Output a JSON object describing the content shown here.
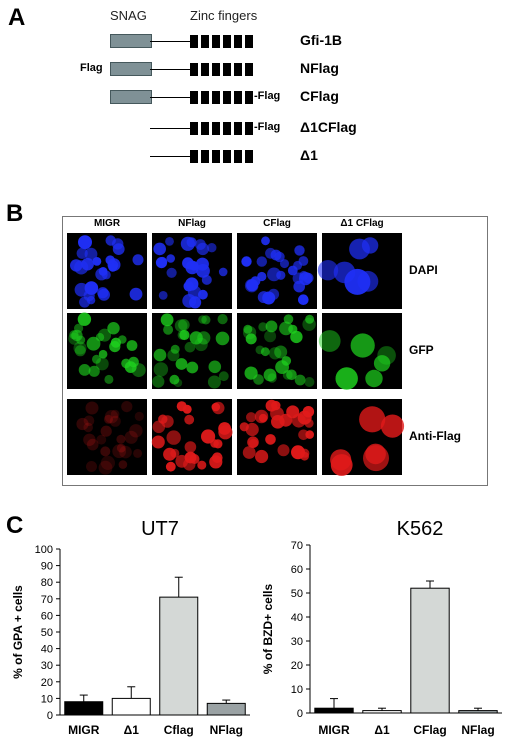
{
  "panel_a": {
    "letter": "A",
    "header_snag": "SNAG",
    "header_zinc": "Zinc fingers",
    "constructs": [
      {
        "label": "Gfi-1B",
        "has_snag": true,
        "left_flag": "",
        "right_flag": ""
      },
      {
        "label": "NFlag",
        "has_snag": true,
        "left_flag": "Flag",
        "right_flag": ""
      },
      {
        "label": "CFlag",
        "has_snag": true,
        "left_flag": "",
        "right_flag": "-Flag"
      },
      {
        "label": "Δ1CFlag",
        "has_snag": false,
        "left_flag": "",
        "right_flag": "-Flag"
      },
      {
        "label": "Δ1",
        "has_snag": false,
        "left_flag": "",
        "right_flag": ""
      }
    ]
  },
  "panel_b": {
    "letter": "B",
    "columns": [
      "MIGR",
      "NFlag",
      "CFlag",
      "Δ1 CFlag"
    ],
    "rows": [
      "DAPI",
      "GFP",
      "Anti-Flag"
    ],
    "colors": {
      "DAPI": "#1f2ff5",
      "GFP": "#1ed21e",
      "Anti-Flag": "#e01a1a"
    }
  },
  "panel_c": {
    "letter": "C"
  },
  "chart_data": [
    {
      "type": "bar",
      "title": "UT7",
      "ylabel": "% of GPA + cells",
      "categories": [
        "MIGR",
        "Δ1",
        "Cflag",
        "NFlag"
      ],
      "values": [
        8,
        10,
        71,
        7
      ],
      "errors": [
        4,
        7,
        12,
        2
      ],
      "bar_fills": [
        "#000000",
        "#ffffff",
        "#d4d8d6",
        "#9aa2a4"
      ],
      "ylim": [
        0,
        100
      ],
      "yticks": [
        0,
        10,
        20,
        30,
        40,
        50,
        60,
        70,
        80,
        90,
        100
      ]
    },
    {
      "type": "bar",
      "title": "K562",
      "ylabel": "% of BZD+ cells",
      "categories": [
        "MIGR",
        "Δ1",
        "CFlag",
        "NFlag"
      ],
      "values": [
        2,
        1,
        52,
        1
      ],
      "errors": [
        4,
        1,
        3,
        1
      ],
      "bar_fills": [
        "#000000",
        "#ffffff",
        "#d4d8d6",
        "#9aa2a4"
      ],
      "ylim": [
        0,
        70
      ],
      "yticks": [
        0,
        10,
        20,
        30,
        40,
        50,
        60,
        70
      ]
    }
  ]
}
